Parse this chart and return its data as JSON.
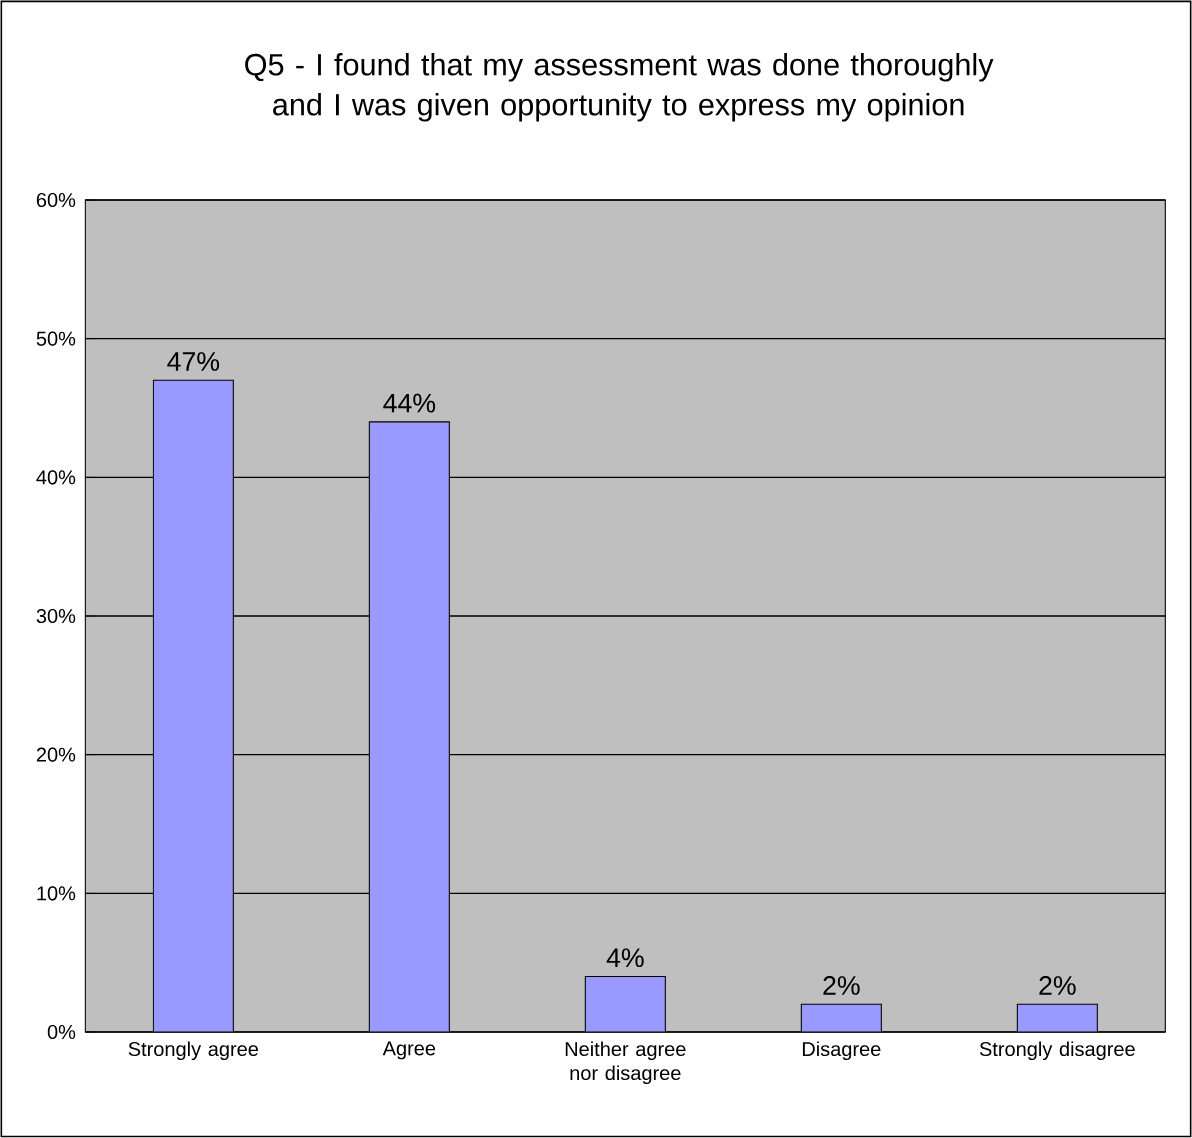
{
  "chart_data": {
    "type": "bar",
    "title": "Q5 - I found that my assessment was done thoroughly and I was given opportunity to express my opinion",
    "categories": [
      "Strongly agree",
      "Agree",
      "Neither agree nor disagree",
      "Disagree",
      "Strongly disagree"
    ],
    "values": [
      47,
      44,
      4,
      2,
      2
    ],
    "value_labels": [
      "47%",
      "44%",
      "4%",
      "2%",
      "2%"
    ],
    "color": "#9999ff",
    "ylim": [
      0,
      60
    ],
    "yticks": [
      {
        "value": 0,
        "label": "0%"
      },
      {
        "value": 10,
        "label": "10%"
      },
      {
        "value": 20,
        "label": "20%"
      },
      {
        "value": 30,
        "label": "30%"
      },
      {
        "value": 40,
        "label": "40%"
      },
      {
        "value": 50,
        "label": "50%"
      },
      {
        "value": 60,
        "label": "60%"
      }
    ],
    "grid": "y"
  }
}
